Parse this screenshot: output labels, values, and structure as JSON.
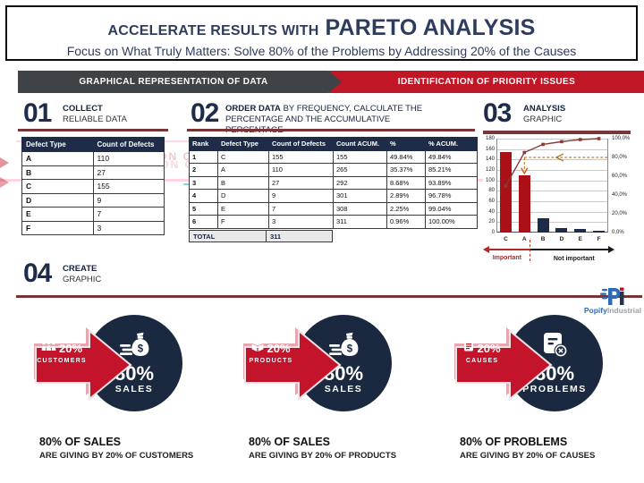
{
  "header": {
    "title_prefix": "ACCELERATE RESULTS WITH",
    "title_main": "PARETO ANALYSIS",
    "subtitle": "Focus on What Truly Matters: Solve 80% of the Problems by Addressing 20% of the Causes"
  },
  "banner": {
    "left": "GRAPHICAL REPRESENTATION OF DATA",
    "right": "IDENTIFICATION OF PRIORITY ISSUES"
  },
  "steps": [
    {
      "number": "01",
      "title": "COLLECT",
      "subtitle": "RELIABLE DATA"
    },
    {
      "number": "02",
      "title": "ORDER DATA",
      "subtitle": "BY FREQUENCY, CALCULATE THE PERCENTAGE AND THE ACCUMULATIVE PERCENTAGE"
    },
    {
      "number": "03",
      "title": "ANALYSIS",
      "subtitle": "GRAPHIC"
    },
    {
      "number": "04",
      "title": "CREATE",
      "subtitle": "GRAPHIC"
    }
  ],
  "table1": {
    "headers": [
      "Defect Type",
      "Count of Defects"
    ],
    "rows": [
      [
        "A",
        "110"
      ],
      [
        "B",
        "27"
      ],
      [
        "C",
        "155"
      ],
      [
        "D",
        "9"
      ],
      [
        "E",
        "7"
      ],
      [
        "F",
        "3"
      ]
    ]
  },
  "table2": {
    "headers": [
      "Rank",
      "Defect Type",
      "Count of Defects",
      "Count ACUM.",
      "%",
      "% ACUM."
    ],
    "rows": [
      [
        "1",
        "C",
        "155",
        "155",
        "49.84%",
        "49.84%"
      ],
      [
        "2",
        "A",
        "110",
        "265",
        "35.37%",
        "85.21%"
      ],
      [
        "3",
        "B",
        "27",
        "292",
        "8.68%",
        "93.89%"
      ],
      [
        "4",
        "D",
        "9",
        "301",
        "2.89%",
        "96.78%"
      ],
      [
        "5",
        "E",
        "7",
        "308",
        "2.25%",
        "99.04%"
      ],
      [
        "6",
        "F",
        "3",
        "311",
        "0.96%",
        "100.00%"
      ]
    ],
    "total_label": "TOTAL",
    "total_value": "311"
  },
  "chart_data": {
    "type": "pareto (bar + line)",
    "title": "ANALYSIS GRAPHIC",
    "categories": [
      "C",
      "A",
      "B",
      "D",
      "E",
      "F"
    ],
    "series": [
      {
        "name": "Count of Defects",
        "type": "bar",
        "values": [
          155,
          110,
          27,
          9,
          7,
          3
        ]
      },
      {
        "name": "% ACUM.",
        "type": "line",
        "values": [
          49.84,
          85.21,
          93.89,
          96.78,
          99.04,
          100.0
        ]
      }
    ],
    "bar_colors": [
      "#ab1016",
      "#ab1016",
      "#1e2c49",
      "#1e2c49",
      "#1e2c49",
      "#1e2c49"
    ],
    "left_axis": {
      "min": 0,
      "max": 180,
      "step": 20,
      "ticks": [
        "0",
        "20",
        "40",
        "60",
        "80",
        "100",
        "120",
        "140",
        "160",
        "180"
      ]
    },
    "right_axis": {
      "ticks": [
        "0,0%",
        "20,0%",
        "40,0%",
        "60,0%",
        "80,0%",
        "100,0%"
      ],
      "values": [
        0,
        20,
        40,
        60,
        80,
        100
      ]
    },
    "guide_percent": 80,
    "grid": true,
    "legend": false,
    "zone_labels": {
      "important": "Important",
      "not_important": "Not important"
    }
  },
  "artifacts": {
    "ghost_text": "IDENTIFICATION OF PRIORITY ISSUES"
  },
  "infographics": [
    {
      "arrow_pct": "20%",
      "arrow_label": "CUSTOMERS",
      "arrow_icon": "people-icon",
      "circle_pct": "80%",
      "circle_label": "SALES",
      "circle_icon": "money-bag-icon",
      "caption_title": "80% OF SALES",
      "caption_sub": "ARE GIVING BY 20% OF CUSTOMERS"
    },
    {
      "arrow_pct": "20%",
      "arrow_label": "PRODUCTS",
      "arrow_icon": "box-icon",
      "circle_pct": "80%",
      "circle_label": "SALES",
      "circle_icon": "money-bag-icon",
      "caption_title": "80% OF SALES",
      "caption_sub": "ARE GIVING BY 20% OF PRODUCTS"
    },
    {
      "arrow_pct": "20%",
      "arrow_label": "CAUSES",
      "arrow_icon": "document-icon",
      "circle_pct": "80%",
      "circle_label": "PROBLEMS",
      "circle_icon": "document-x-icon",
      "caption_title": "80% OF PROBLEMS",
      "caption_sub": "ARE GIVING BY 20% OF CAUSES"
    }
  ],
  "logo": {
    "brand_bold": "Popify",
    "brand_light": "Industrial"
  },
  "colors": {
    "navy": "#1b2940",
    "red_arrow": "#c4142c",
    "bar_red": "#ab1016",
    "bar_navy": "#1e2c49",
    "maroon_rule": "#7b3436",
    "banner_gray": "#3f4347",
    "banner_red": "#c11626",
    "cumulative_line": "#8c3a38",
    "guide_gold": "#a4660c",
    "guide_orange": "#c55a11",
    "important_red": "#b02a2a",
    "total_bg": "#e9e9e9",
    "logo_blue": "#2d6cb5",
    "logo_gray": "#9aa0a8"
  }
}
